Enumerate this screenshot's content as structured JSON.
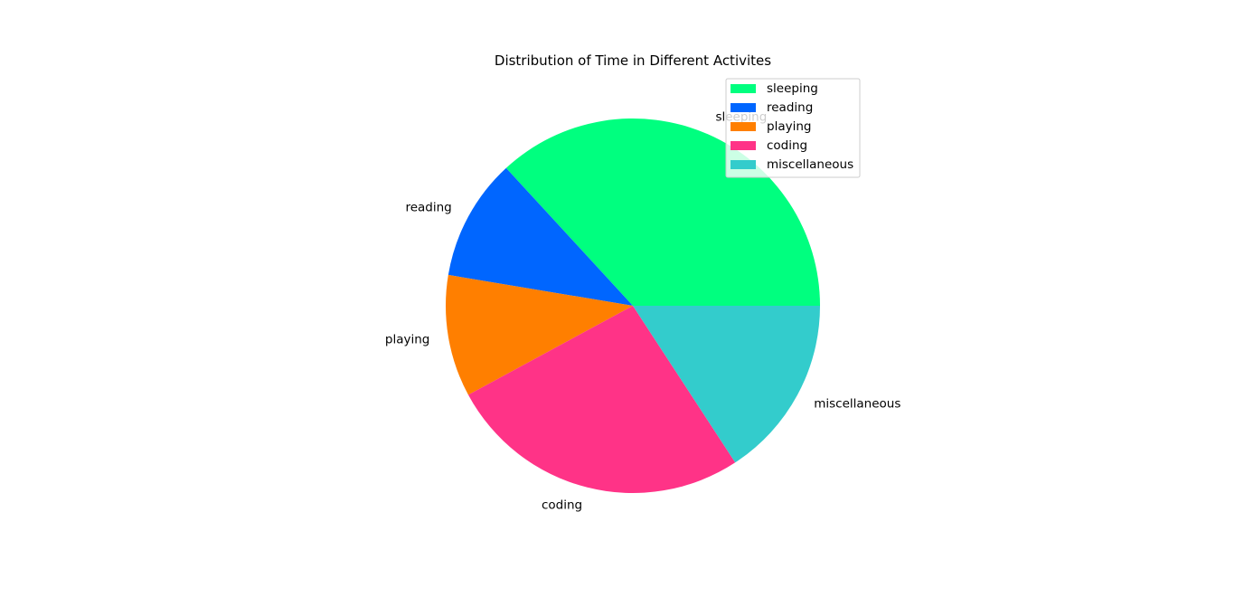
{
  "chart_data": {
    "type": "pie",
    "title": "Distribution of Time in Different Activites",
    "categories": [
      "sleeping",
      "reading",
      "playing",
      "coding",
      "miscellaneous"
    ],
    "values": [
      7,
      2,
      2,
      5,
      3
    ],
    "colors": [
      "#00ff7f",
      "#0066ff",
      "#ff7f00",
      "#ff3387",
      "#33cccc"
    ],
    "start_angle": 0,
    "direction": "counterclockwise",
    "legend_position": "upper right"
  }
}
